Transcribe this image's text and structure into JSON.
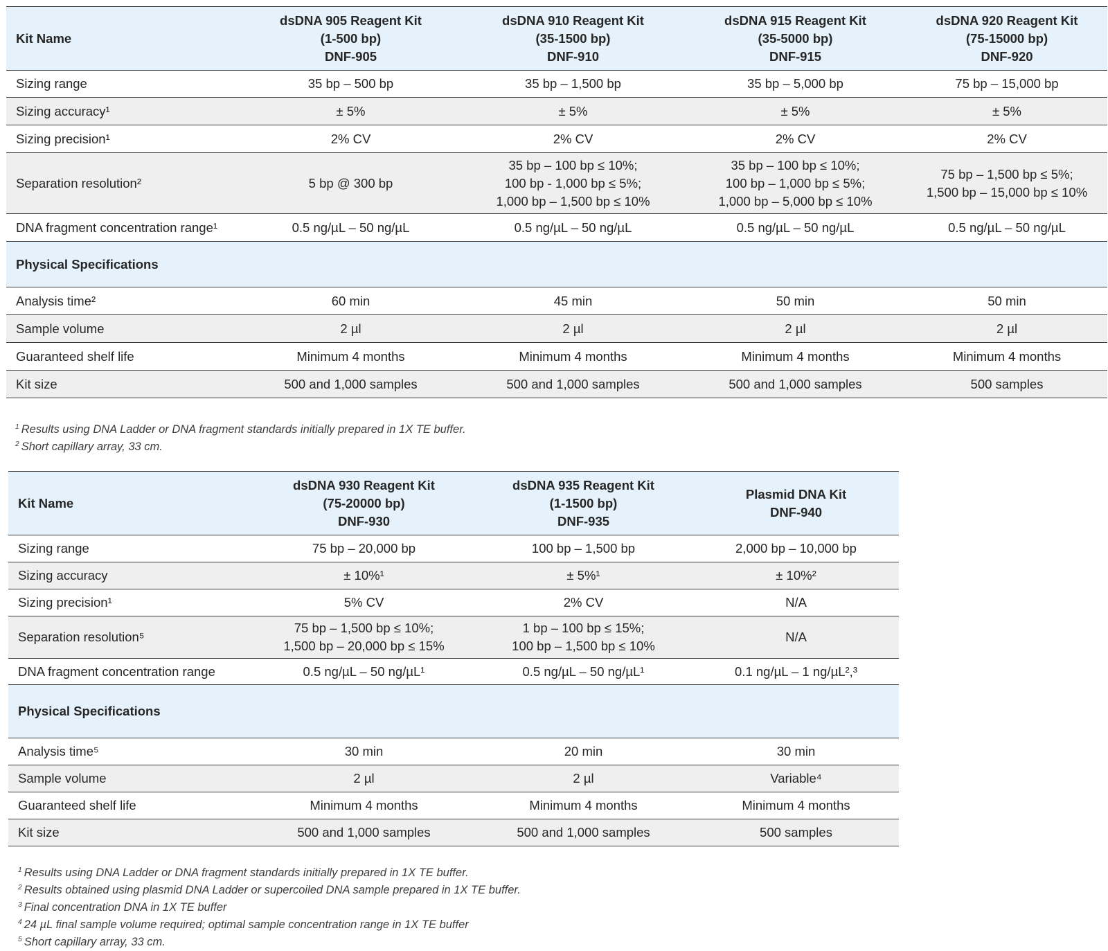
{
  "table1": {
    "header": {
      "label": "Kit Name",
      "kits": [
        "dsDNA 905 Reagent Kit\n(1-500 bp)\nDNF-905",
        "dsDNA 910 Reagent Kit\n(35-1500 bp)\nDNF-910",
        "dsDNA 915 Reagent Kit\n(35-5000 bp)\nDNF-915",
        "dsDNA 920 Reagent Kit\n(75-15000 bp)\nDNF-920"
      ]
    },
    "rows": [
      {
        "label": "Sizing range",
        "values": [
          "35 bp – 500 bp",
          "35 bp – 1,500 bp",
          "35 bp – 5,000 bp",
          "75 bp – 15,000 bp"
        ]
      },
      {
        "label": "Sizing accuracy¹",
        "values": [
          "± 5%",
          "± 5%",
          "± 5%",
          "± 5%"
        ]
      },
      {
        "label": "Sizing precision¹",
        "values": [
          "2% CV",
          "2% CV",
          "2% CV",
          "2% CV"
        ]
      },
      {
        "label": "Separation resolution²",
        "values": [
          "5 bp @ 300 bp",
          "35 bp – 100 bp ≤ 10%;\n100 bp - 1,000 bp ≤ 5%;\n1,000 bp – 1,500 bp ≤ 10%",
          "35 bp – 100 bp ≤ 10%;\n100 bp – 1,000 bp ≤ 5%;\n1,000 bp – 5,000 bp ≤ 10%",
          "75 bp – 1,500 bp ≤ 5%;\n1,500 bp – 15,000 bp ≤ 10%"
        ]
      },
      {
        "label": "DNA fragment concentration range¹",
        "values": [
          "0.5 ng/µL – 50 ng/µL",
          "0.5 ng/µL – 50 ng/µL",
          "0.5 ng/µL – 50 ng/µL",
          "0.5 ng/µL – 50 ng/µL"
        ]
      }
    ],
    "section": "Physical Specifications",
    "physical_rows": [
      {
        "label": "Analysis time²",
        "values": [
          "60 min",
          "45 min",
          "50 min",
          "50 min"
        ]
      },
      {
        "label": "Sample volume",
        "values": [
          "2 µl",
          "2 µl",
          "2 µl",
          "2 µl"
        ]
      },
      {
        "label": "Guaranteed shelf life",
        "values": [
          "Minimum 4 months",
          "Minimum 4 months",
          "Minimum 4 months",
          "Minimum 4 months"
        ]
      },
      {
        "label": "Kit size",
        "values": [
          "500 and 1,000 samples",
          "500 and 1,000 samples",
          "500 and 1,000 samples",
          "500 samples"
        ]
      }
    ],
    "footnotes": [
      {
        "mark": "1",
        "text": "Results using DNA Ladder or DNA fragment standards initially prepared in 1X TE buffer."
      },
      {
        "mark": "2",
        "text": "Short capillary array, 33 cm."
      }
    ]
  },
  "table2": {
    "header": {
      "label": "Kit Name",
      "kits": [
        "dsDNA 930 Reagent Kit\n(75-20000 bp)\nDNF-930",
        "dsDNA 935 Reagent Kit\n(1-1500 bp)\nDNF-935",
        "Plasmid DNA Kit\nDNF-940"
      ]
    },
    "rows": [
      {
        "label": "Sizing range",
        "values": [
          "75 bp – 20,000 bp",
          "100 bp – 1,500 bp",
          "2,000 bp – 10,000 bp"
        ]
      },
      {
        "label": "Sizing accuracy",
        "values": [
          "± 10%¹",
          "± 5%¹",
          "± 10%²"
        ]
      },
      {
        "label": "Sizing precision¹",
        "values": [
          "5% CV",
          "2% CV",
          "N/A"
        ]
      },
      {
        "label": "Separation resolution⁵",
        "values": [
          "75 bp – 1,500 bp ≤ 10%;\n1,500 bp – 20,000 bp ≤ 15%",
          "1 bp – 100 bp ≤ 15%;\n100 bp – 1,500 bp ≤ 10%",
          "N/A"
        ]
      },
      {
        "label": "DNA fragment concentration range",
        "values": [
          "0.5 ng/µL – 50 ng/µL¹",
          "0.5 ng/µL – 50 ng/µL¹",
          "0.1 ng/µL – 1 ng/µL²,³"
        ]
      }
    ],
    "section": "Physical Specifications",
    "physical_rows": [
      {
        "label": "Analysis time⁵",
        "values": [
          "30 min",
          "20 min",
          "30 min"
        ]
      },
      {
        "label": "Sample volume",
        "values": [
          "2 µl",
          "2 µl",
          "Variable⁴"
        ]
      },
      {
        "label": "Guaranteed shelf life",
        "values": [
          "Minimum 4 months",
          "Minimum 4 months",
          "Minimum 4 months"
        ]
      },
      {
        "label": "Kit size",
        "values": [
          "500 and 1,000 samples",
          "500 and 1,000 samples",
          "500 samples"
        ]
      }
    ],
    "footnotes": [
      {
        "mark": "1",
        "text": "Results using DNA Ladder or DNA fragment standards initially prepared in 1X TE buffer."
      },
      {
        "mark": "2",
        "text": "Results obtained using plasmid DNA Ladder or supercoiled DNA sample prepared in 1X TE buffer."
      },
      {
        "mark": "3",
        "text": "Final concentration DNA in 1X TE buffer"
      },
      {
        "mark": "4",
        "text": "24 µL final sample volume required; optimal sample concentration range in 1X TE buffer"
      },
      {
        "mark": "5",
        "text": "Short capillary array, 33 cm."
      }
    ]
  }
}
